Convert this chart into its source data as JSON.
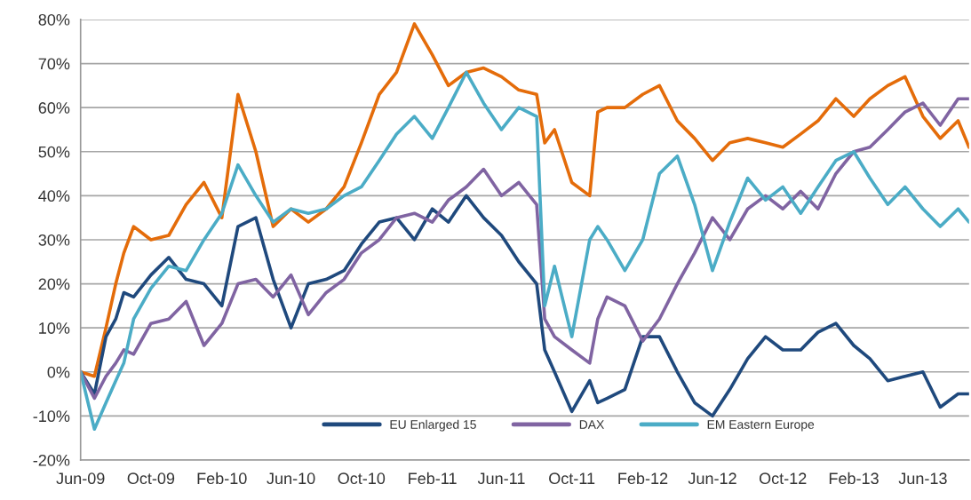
{
  "chart_data": {
    "type": "line",
    "x": [
      "2009-06-01",
      "2009-06-25",
      "2009-07-15",
      "2009-08-01",
      "2009-08-15",
      "2009-09-01",
      "2009-10-01",
      "2009-11-01",
      "2009-12-01",
      "2010-01-01",
      "2010-02-01",
      "2010-03-01",
      "2010-04-01",
      "2010-05-01",
      "2010-06-01",
      "2010-07-01",
      "2010-08-01",
      "2010-09-01",
      "2010-10-01",
      "2010-11-01",
      "2010-12-01",
      "2011-01-01",
      "2011-02-01",
      "2011-03-01",
      "2011-04-01",
      "2011-05-01",
      "2011-06-01",
      "2011-07-01",
      "2011-08-01",
      "2011-08-15",
      "2011-09-01",
      "2011-10-01",
      "2011-11-01",
      "2011-11-15",
      "2011-12-01",
      "2012-01-01",
      "2012-02-01",
      "2012-03-01",
      "2012-04-01",
      "2012-05-01",
      "2012-06-01",
      "2012-07-01",
      "2012-08-01",
      "2012-09-01",
      "2012-10-01",
      "2012-11-01",
      "2012-12-01",
      "2013-01-01",
      "2013-02-01",
      "2013-03-01",
      "2013-04-01",
      "2013-05-01",
      "2013-06-01",
      "2013-07-01",
      "2013-08-01",
      "2013-08-20"
    ],
    "series": [
      {
        "color": "#e46c0a",
        "values": [
          0,
          -1,
          10,
          20,
          27,
          33,
          30,
          31,
          38,
          43,
          35,
          63,
          50,
          33,
          37,
          34,
          37,
          42,
          52,
          63,
          68,
          79,
          72,
          65,
          68,
          69,
          67,
          64,
          63,
          52,
          55,
          43,
          40,
          59,
          60,
          60,
          63,
          65,
          57,
          53,
          48,
          52,
          53,
          52,
          51,
          54,
          57,
          62,
          58,
          62,
          65,
          67,
          58,
          53,
          57,
          51
        ]
      },
      {
        "name": "EU Enlarged 15",
        "color": "#1f497d",
        "values": [
          0,
          -5,
          8,
          12,
          18,
          17,
          22,
          26,
          21,
          20,
          15,
          33,
          35,
          21,
          10,
          20,
          21,
          23,
          29,
          34,
          35,
          30,
          37,
          34,
          40,
          35,
          31,
          25,
          20,
          5,
          0,
          -9,
          -2,
          -7,
          -6,
          -4,
          8,
          8,
          0,
          -7,
          -10,
          -4,
          3,
          8,
          5,
          5,
          9,
          11,
          6,
          3,
          -2,
          -1,
          0,
          -8,
          -5,
          -5
        ]
      },
      {
        "name": "DAX",
        "color": "#8064a2",
        "values": [
          0,
          -6,
          -1,
          2,
          5,
          4,
          11,
          12,
          16,
          6,
          11,
          20,
          21,
          17,
          22,
          13,
          18,
          21,
          27,
          30,
          35,
          36,
          34,
          39,
          42,
          46,
          40,
          43,
          38,
          12,
          8,
          5,
          2,
          12,
          17,
          15,
          7,
          12,
          20,
          27,
          35,
          30,
          37,
          40,
          37,
          41,
          37,
          45,
          50,
          51,
          55,
          59,
          61,
          56,
          62,
          62
        ]
      },
      {
        "name": "EM Eastern Europe",
        "color": "#4bacc6",
        "values": [
          0,
          -13,
          -7,
          -2,
          2,
          12,
          19,
          24,
          23,
          30,
          36,
          47,
          40,
          34,
          37,
          36,
          37,
          40,
          42,
          48,
          54,
          58,
          53,
          60,
          68,
          61,
          55,
          60,
          58,
          15,
          24,
          8,
          30,
          33,
          30,
          23,
          30,
          45,
          49,
          38,
          23,
          34,
          44,
          39,
          42,
          36,
          42,
          48,
          50,
          44,
          38,
          42,
          37,
          33,
          37,
          34
        ]
      }
    ],
    "xlim": [
      "2009-06-01",
      "2013-08-20"
    ],
    "xticks": [
      {
        "value": "2009-06-01",
        "label": "Jun-09"
      },
      {
        "value": "2009-10-01",
        "label": "Oct-09"
      },
      {
        "value": "2010-02-01",
        "label": "Feb-10"
      },
      {
        "value": "2010-06-01",
        "label": "Jun-10"
      },
      {
        "value": "2010-10-01",
        "label": "Oct-10"
      },
      {
        "value": "2011-02-01",
        "label": "Feb-11"
      },
      {
        "value": "2011-06-01",
        "label": "Jun-11"
      },
      {
        "value": "2011-10-01",
        "label": "Oct-11"
      },
      {
        "value": "2012-02-01",
        "label": "Feb-12"
      },
      {
        "value": "2012-06-01",
        "label": "Jun-12"
      },
      {
        "value": "2012-10-01",
        "label": "Oct-12"
      },
      {
        "value": "2013-02-01",
        "label": "Feb-13"
      },
      {
        "value": "2013-06-01",
        "label": "Jun-13"
      }
    ],
    "ylim": [
      -20,
      80
    ],
    "yticks": [
      {
        "value": -20,
        "label": "-20%"
      },
      {
        "value": -10,
        "label": "-10%"
      },
      {
        "value": 0,
        "label": "0%"
      },
      {
        "value": 10,
        "label": "10%"
      },
      {
        "value": 20,
        "label": "20%"
      },
      {
        "value": 30,
        "label": "30%"
      },
      {
        "value": 40,
        "label": "40%"
      },
      {
        "value": 50,
        "label": "50%"
      },
      {
        "value": 60,
        "label": "60%"
      },
      {
        "value": 70,
        "label": "70%"
      },
      {
        "value": 80,
        "label": "80%"
      }
    ],
    "grid": "y",
    "legend": "bottom",
    "line_style": "solid"
  }
}
